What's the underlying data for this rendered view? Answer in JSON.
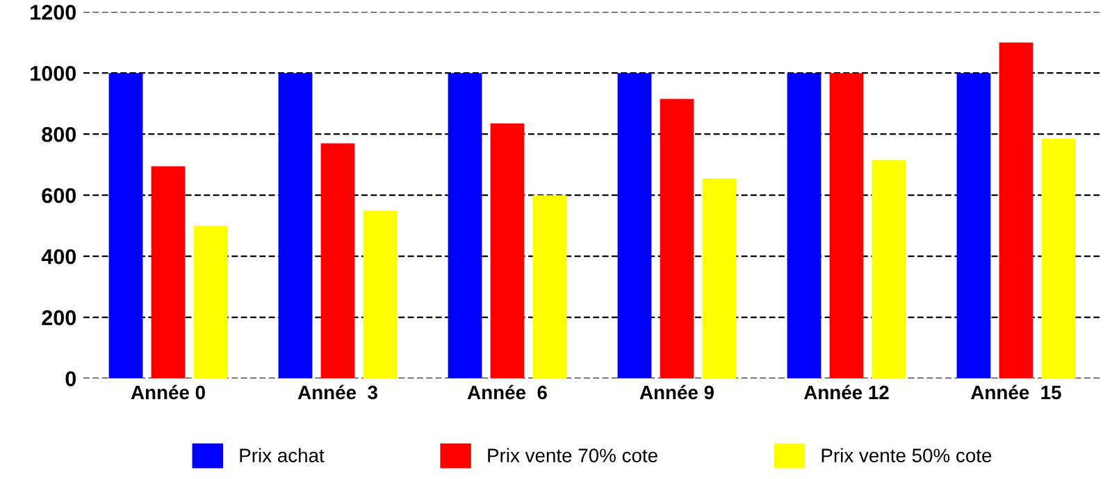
{
  "chart_data": {
    "type": "bar",
    "categories": [
      "Année 0",
      "Année  3",
      "Année  6",
      "Année 9",
      "Année 12",
      "Année  15"
    ],
    "series": [
      {
        "name": "Prix achat",
        "color": "#0000ff",
        "values": [
          1000,
          1000,
          1000,
          1000,
          1000,
          1000
        ]
      },
      {
        "name": "Prix vente 70% cote",
        "color": "#ff0000",
        "values": [
          695,
          770,
          835,
          915,
          1000,
          1100
        ]
      },
      {
        "name": "Prix vente 50% cote",
        "color": "#ffff00",
        "values": [
          500,
          550,
          600,
          655,
          715,
          785
        ]
      }
    ],
    "ylim": [
      0,
      1200
    ],
    "yticks": [
      0,
      200,
      400,
      600,
      800,
      1000,
      1200
    ],
    "grid": "y",
    "legend": "bottom"
  }
}
